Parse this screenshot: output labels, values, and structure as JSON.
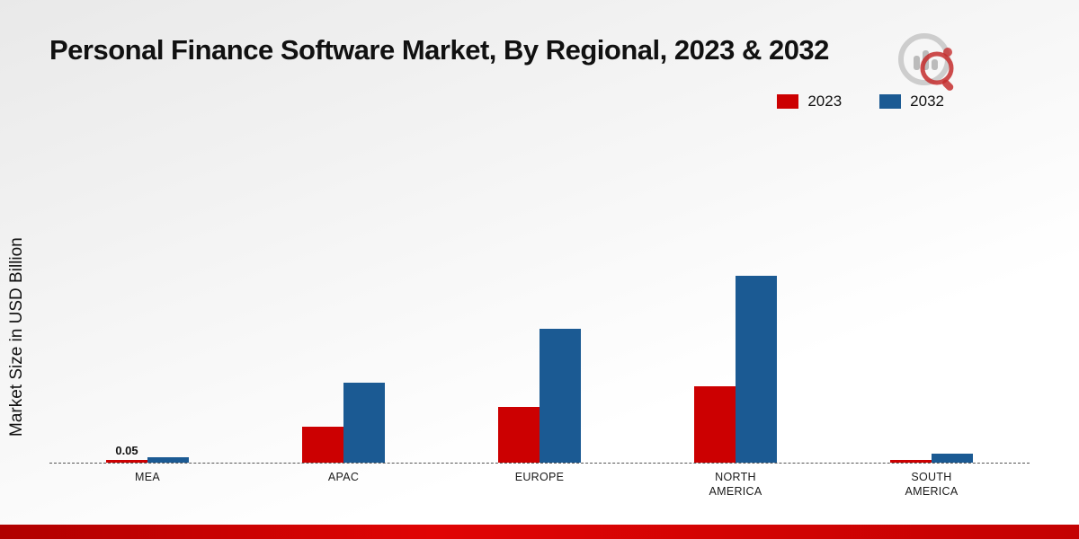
{
  "header": {
    "title": "Personal Finance Software Market, By Regional, 2023 & 2032"
  },
  "logo": {
    "name": "market-research-logo"
  },
  "chart_data": {
    "type": "bar",
    "title": "Personal Finance Software Market, By Regional, 2023 & 2032",
    "xlabel": "",
    "ylabel": "Market Size in USD Billion",
    "categories": [
      "MEA",
      "APAC",
      "EUROPE",
      "NORTH AMERICA",
      "SOUTH AMERICA"
    ],
    "series": [
      {
        "name": "2023",
        "color": "#cc0001",
        "values": [
          0.05,
          0.67,
          1.05,
          1.43,
          0.05
        ]
      },
      {
        "name": "2032",
        "color": "#1b5a93",
        "values": [
          0.1,
          1.5,
          2.5,
          3.5,
          0.17
        ]
      }
    ],
    "bar_labels": [
      [
        "0.05",
        "",
        "",
        "",
        ""
      ],
      [
        "",
        "",
        "",
        "",
        ""
      ]
    ],
    "ylim": [
      0,
      3.5
    ],
    "grid": false,
    "baseline_style": "dashed",
    "legend_position": "top-right"
  },
  "footer": {
    "accent_color": "#cc0000"
  }
}
